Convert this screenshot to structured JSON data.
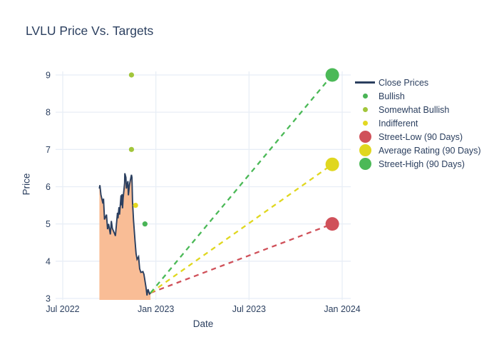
{
  "chart_data": {
    "type": "line",
    "title": "LVLU Price Vs. Targets",
    "xlabel": "Date",
    "ylabel": "Price",
    "grid": true,
    "legend_position": "right",
    "background_color": "#ffffff",
    "grid_color": "#e8eef6",
    "text_color": "#2b3f5f",
    "x_ticks": [
      {
        "label": "Jul 2022",
        "date": "2022-07-01"
      },
      {
        "label": "Jan 2023",
        "date": "2023-01-01"
      },
      {
        "label": "Jul 2023",
        "date": "2023-07-01"
      },
      {
        "label": "Jan 2024",
        "date": "2024-01-01"
      }
    ],
    "y_ticks": [
      3,
      4,
      5,
      6,
      7,
      8,
      9
    ],
    "ylim": [
      2.95,
      9.2
    ],
    "close_prices": {
      "name": "Close Prices",
      "line_color": "#2b3f5f",
      "fill_color": "#f9bd96",
      "points": [
        [
          "2022-09-12",
          5.95
        ],
        [
          "2022-09-13",
          6.04
        ],
        [
          "2022-09-15",
          5.78
        ],
        [
          "2022-09-19",
          5.55
        ],
        [
          "2022-09-20",
          5.68
        ],
        [
          "2022-09-22",
          5.12
        ],
        [
          "2022-09-26",
          5.25
        ],
        [
          "2022-09-28",
          4.86
        ],
        [
          "2022-09-30",
          5.0
        ],
        [
          "2022-10-03",
          4.72
        ],
        [
          "2022-10-05",
          5.08
        ],
        [
          "2022-10-07",
          4.88
        ],
        [
          "2022-10-11",
          4.75
        ],
        [
          "2022-10-13",
          4.68
        ],
        [
          "2022-10-17",
          5.3
        ],
        [
          "2022-10-18",
          5.15
        ],
        [
          "2022-10-20",
          5.45
        ],
        [
          "2022-10-21",
          5.25
        ],
        [
          "2022-10-24",
          5.77
        ],
        [
          "2022-10-25",
          5.5
        ],
        [
          "2022-10-26",
          5.8
        ],
        [
          "2022-10-27",
          5.42
        ],
        [
          "2022-10-28",
          5.68
        ],
        [
          "2022-10-31",
          6.1
        ],
        [
          "2022-11-01",
          6.36
        ],
        [
          "2022-11-03",
          6.25
        ],
        [
          "2022-11-04",
          5.95
        ],
        [
          "2022-11-07",
          6.15
        ],
        [
          "2022-11-08",
          5.77
        ],
        [
          "2022-11-10",
          6.05
        ],
        [
          "2022-11-14",
          6.32
        ],
        [
          "2022-11-15",
          6.25
        ],
        [
          "2022-11-16",
          5.6
        ],
        [
          "2022-11-18",
          5.1
        ],
        [
          "2022-11-21",
          4.55
        ],
        [
          "2022-11-23",
          4.2
        ],
        [
          "2022-11-25",
          4.05
        ],
        [
          "2022-11-28",
          4.12
        ],
        [
          "2022-11-30",
          3.8
        ],
        [
          "2022-12-02",
          3.7
        ],
        [
          "2022-12-06",
          3.72
        ],
        [
          "2022-12-08",
          3.65
        ],
        [
          "2022-12-12",
          3.3
        ],
        [
          "2022-12-14",
          3.08
        ],
        [
          "2022-12-16",
          3.25
        ],
        [
          "2022-12-19",
          3.12
        ],
        [
          "2022-12-21",
          3.15
        ]
      ]
    },
    "analyst_ratings": [
      {
        "label": "Somewhat Bullish",
        "date": "2022-11-14",
        "price": 9.0,
        "color": "#a2c63b"
      },
      {
        "label": "Somewhat Bullish",
        "date": "2022-11-14",
        "price": 7.0,
        "color": "#a2c63b"
      },
      {
        "label": "Indifferent",
        "date": "2022-11-22",
        "price": 5.5,
        "color": "#e3d821"
      },
      {
        "label": "Bullish",
        "date": "2022-12-10",
        "price": 5.0,
        "color": "#49b456"
      }
    ],
    "targets": [
      {
        "label": "Street-Low (90 Days)",
        "date": "2023-12-12",
        "price": 5.0,
        "color": "#d0515a"
      },
      {
        "label": "Average Rating (90 Days)",
        "date": "2023-12-12",
        "price": 6.6,
        "color": "#e0d71f"
      },
      {
        "label": "Street-High (90 Days)",
        "date": "2023-12-12",
        "price": 9.0,
        "color": "#4bb957"
      }
    ],
    "legend": [
      {
        "label": "Close Prices",
        "marker": "line",
        "color": "#2b3f5f"
      },
      {
        "label": "Bullish",
        "marker": "dot-small",
        "color": "#49b456"
      },
      {
        "label": "Somewhat Bullish",
        "marker": "dot-small",
        "color": "#a2c63b"
      },
      {
        "label": "Indifferent",
        "marker": "dot-small",
        "color": "#e3d821"
      },
      {
        "label": "Street-Low (90 Days)",
        "marker": "dot-large",
        "color": "#d0515a"
      },
      {
        "label": "Average Rating (90 Days)",
        "marker": "dot-large",
        "color": "#e0d71f"
      },
      {
        "label": "Street-High (90 Days)",
        "marker": "dot-large",
        "color": "#4bb957"
      }
    ]
  }
}
